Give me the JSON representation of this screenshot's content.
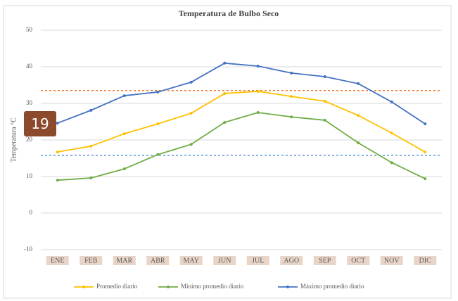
{
  "chart_data": {
    "type": "line",
    "title": "Temperatura de Bulbo Seco",
    "y_label": "Temperatura °C",
    "categories": [
      "ENE",
      "FEB",
      "MAR",
      "ABR",
      "MAY",
      "JUN",
      "JUL",
      "AGO",
      "SEP",
      "OCT",
      "NOV",
      "DIC"
    ],
    "series": [
      {
        "name": "Promedio diario",
        "color": "#ffc000",
        "values": [
          16.7,
          18.3,
          21.7,
          24.4,
          27.3,
          32.7,
          33.3,
          31.9,
          30.6,
          26.7,
          21.9,
          16.7
        ]
      },
      {
        "name": "Mínimo promedio diario",
        "color": "#70ad47",
        "values": [
          9.0,
          9.6,
          12.1,
          16.0,
          18.8,
          24.8,
          27.5,
          26.3,
          25.4,
          19.2,
          13.8,
          9.4
        ]
      },
      {
        "name": "Máximo promedio diario",
        "color": "#4472c4",
        "values": [
          24.6,
          28.1,
          32.1,
          33.1,
          35.8,
          41.0,
          40.2,
          38.3,
          37.3,
          35.4,
          30.4,
          24.4
        ]
      }
    ],
    "reference_lines": [
      {
        "value": 33.5,
        "color": "#ed7d31"
      },
      {
        "value": 15.8,
        "color": "#5b9bd5"
      }
    ],
    "ylim": [
      -10,
      50
    ],
    "yticks": [
      -10,
      0,
      10,
      20,
      30,
      40,
      50
    ],
    "grid": true,
    "legend": "bottom"
  },
  "badge": "19"
}
